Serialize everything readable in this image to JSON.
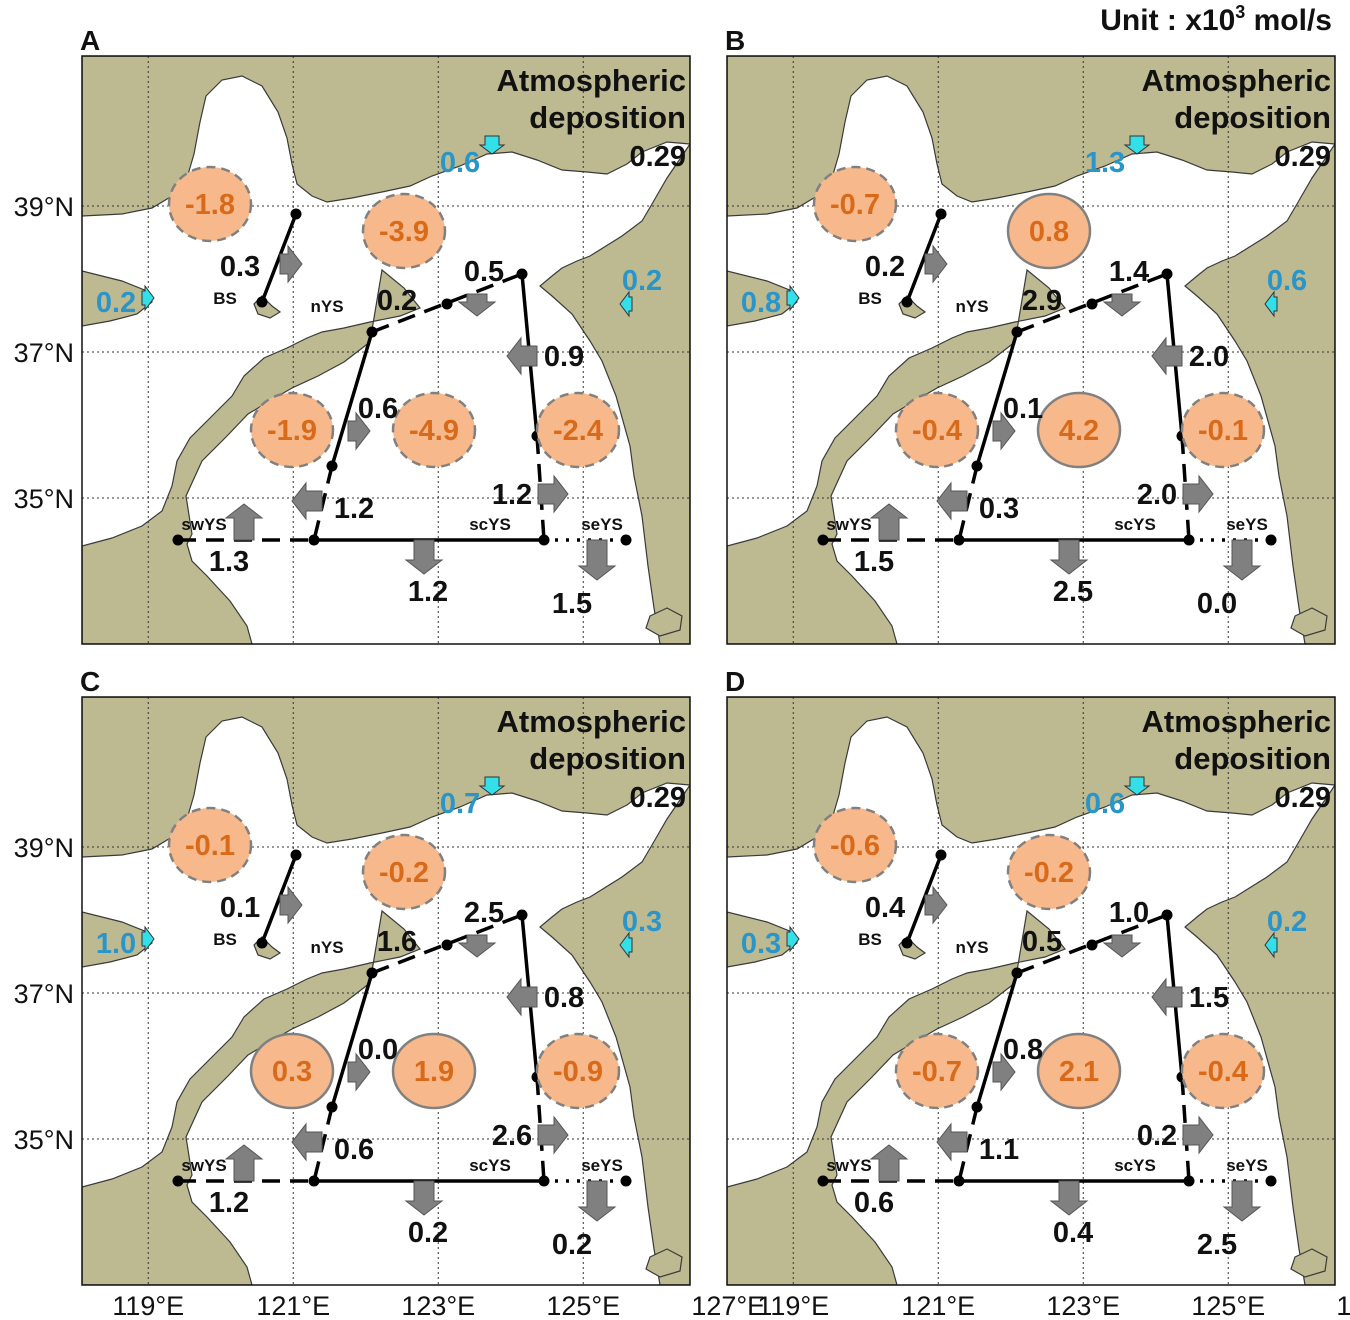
{
  "unit": {
    "prefix": "Unit : x10",
    "exp": "3",
    "suffix": " mol/s"
  },
  "axes": {
    "lat_ticks": [
      {
        "value": 39,
        "label": "39°N"
      },
      {
        "value": 37,
        "label": "37°N"
      },
      {
        "value": 35,
        "label": "35°N"
      }
    ],
    "lon_ticks": [
      {
        "value": 119,
        "label": "119°E"
      },
      {
        "value": 121,
        "label": "121°E"
      },
      {
        "value": 123,
        "label": "123°E"
      },
      {
        "value": 125,
        "label": "125°E"
      },
      {
        "value": 127,
        "label": "127°E"
      }
    ]
  },
  "regions": {
    "BS": "BS",
    "nYS": "nYS",
    "swYS": "swYS",
    "scYS": "scYS",
    "seYS": "seYS"
  },
  "atmos": {
    "line1": "Atmospheric",
    "line2": "deposition"
  },
  "colors": {
    "land": "#bdba92",
    "sea": "#ffffff",
    "oval": "#f7b98c",
    "oval_text": "#d96a1a",
    "river": "#2a95c8",
    "river_arrow": "#33e0ea",
    "flux_arrow": "#808080"
  },
  "panels": [
    {
      "letter": "A",
      "atmos_value": "0.29",
      "rivers": {
        "north": "0.6",
        "west": "0.2",
        "east": "0.2"
      },
      "ovals": {
        "bs": "-1.8",
        "nys": "-3.9",
        "swys": "-1.9",
        "scys": "-4.9",
        "seys": "-2.4"
      },
      "oval_dashed": {
        "bs": true,
        "nys": true,
        "swys": true,
        "scys": true,
        "seys": true
      },
      "fluxes": {
        "bs_nys": "0.3",
        "bs_nys_w": "0.2",
        "nys_ne": "0.5",
        "east_upper": "0.9",
        "sw_sc": "0.6",
        "sw_sc_low": "1.2",
        "sc_se": "1.2",
        "sw_south": "1.3",
        "sc_south": "1.2",
        "se_south": "1.5"
      }
    },
    {
      "letter": "B",
      "atmos_value": "0.29",
      "rivers": {
        "north": "1.3",
        "west": "0.8",
        "east": "0.6"
      },
      "ovals": {
        "bs": "-0.7",
        "nys": "0.8",
        "swys": "-0.4",
        "scys": "4.2",
        "seys": "-0.1"
      },
      "oval_dashed": {
        "bs": true,
        "nys": false,
        "swys": true,
        "scys": false,
        "seys": true
      },
      "fluxes": {
        "bs_nys": "0.2",
        "bs_nys_w": "2.9",
        "nys_ne": "1.4",
        "east_upper": "2.0",
        "sw_sc": "0.1",
        "sw_sc_low": "0.3",
        "sc_se": "2.0",
        "sw_south": "1.5",
        "sc_south": "2.5",
        "se_south": "0.0"
      }
    },
    {
      "letter": "C",
      "atmos_value": "0.29",
      "rivers": {
        "north": "0.7",
        "west": "1.0",
        "east": "0.3"
      },
      "ovals": {
        "bs": "-0.1",
        "nys": "-0.2",
        "swys": "0.3",
        "scys": "1.9",
        "seys": "-0.9"
      },
      "oval_dashed": {
        "bs": true,
        "nys": true,
        "swys": false,
        "scys": false,
        "seys": true
      },
      "fluxes": {
        "bs_nys": "0.1",
        "bs_nys_w": "1.6",
        "nys_ne": "2.5",
        "east_upper": "0.8",
        "sw_sc": "0.0",
        "sw_sc_low": "0.6",
        "sc_se": "2.6",
        "sw_south": "1.2",
        "sc_south": "0.2",
        "se_south": "0.2"
      }
    },
    {
      "letter": "D",
      "atmos_value": "0.29",
      "rivers": {
        "north": "0.6",
        "west": "0.3",
        "east": "0.2"
      },
      "ovals": {
        "bs": "-0.6",
        "nys": "-0.2",
        "swys": "-0.7",
        "scys": "2.1",
        "seys": "-0.4"
      },
      "oval_dashed": {
        "bs": true,
        "nys": true,
        "swys": true,
        "scys": false,
        "seys": true
      },
      "fluxes": {
        "bs_nys": "0.4",
        "bs_nys_w": "0.5",
        "nys_ne": "1.0",
        "east_upper": "1.5",
        "sw_sc": "0.8",
        "sw_sc_low": "1.1",
        "sc_se": "0.2",
        "sw_south": "0.6",
        "sc_south": "0.4",
        "se_south": "2.5"
      }
    }
  ]
}
